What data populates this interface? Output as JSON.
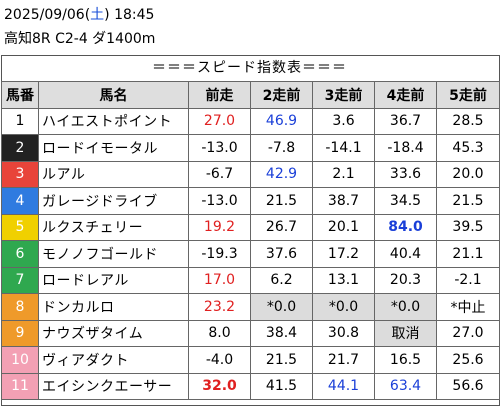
{
  "header": {
    "date": "2025/09/06",
    "dow_open": "(",
    "dow": "土",
    "dow_close": ")",
    "time": "18:45",
    "race": "高知8R C2-4 ダ1400m"
  },
  "table_title": "＝＝＝スピード指数表＝＝＝",
  "columns": [
    "馬番",
    "馬名",
    "前走",
    "2走前",
    "3走前",
    "4走前",
    "5走前"
  ],
  "frame_colors": {
    "1": {
      "bg": "#ffffff",
      "fg": "#000000"
    },
    "2": {
      "bg": "#222222",
      "fg": "#ffffff"
    },
    "3": {
      "bg": "#e8443a",
      "fg": "#ffffff"
    },
    "4": {
      "bg": "#2f7be0",
      "fg": "#ffffff"
    },
    "5": {
      "bg": "#f0d000",
      "fg": "#ffffff"
    },
    "6": {
      "bg": "#2fa84f",
      "fg": "#ffffff"
    },
    "7": {
      "bg": "#ef9a2a",
      "fg": "#ffffff"
    },
    "8": {
      "bg": "#f3a0b4",
      "fg": "#ffffff"
    }
  },
  "rows": [
    {
      "num": "1",
      "frame": "1",
      "name": "ハイエストポイント",
      "vals": [
        {
          "t": "27.0",
          "c": "red"
        },
        {
          "t": "46.9",
          "c": "blue"
        },
        {
          "t": "3.6"
        },
        {
          "t": "36.7"
        },
        {
          "t": "28.5"
        }
      ]
    },
    {
      "num": "2",
      "frame": "2",
      "name": "ロードイモータル",
      "vals": [
        {
          "t": "-13.0"
        },
        {
          "t": "-7.8"
        },
        {
          "t": "-14.1"
        },
        {
          "t": "-18.4"
        },
        {
          "t": "45.3"
        }
      ]
    },
    {
      "num": "3",
      "frame": "3",
      "name": "ルアル",
      "vals": [
        {
          "t": "-6.7"
        },
        {
          "t": "42.9",
          "c": "blue"
        },
        {
          "t": "2.1"
        },
        {
          "t": "33.6"
        },
        {
          "t": "20.0"
        }
      ]
    },
    {
      "num": "4",
      "frame": "4",
      "name": "ガレージドライブ",
      "vals": [
        {
          "t": "-13.0"
        },
        {
          "t": "21.5"
        },
        {
          "t": "38.7"
        },
        {
          "t": "34.5"
        },
        {
          "t": "21.5"
        }
      ]
    },
    {
      "num": "5",
      "frame": "5",
      "name": "ルクスチェリー",
      "vals": [
        {
          "t": "19.2",
          "c": "red"
        },
        {
          "t": "26.7"
        },
        {
          "t": "20.1"
        },
        {
          "t": "84.0",
          "c": "blue",
          "b": true
        },
        {
          "t": "39.5"
        }
      ]
    },
    {
      "num": "6",
      "frame": "6",
      "name": "モノノフゴールド",
      "vals": [
        {
          "t": "-19.3"
        },
        {
          "t": "37.6"
        },
        {
          "t": "17.2"
        },
        {
          "t": "40.4"
        },
        {
          "t": "21.1"
        }
      ]
    },
    {
      "num": "7",
      "frame": "6",
      "name": "ロードレアル",
      "vals": [
        {
          "t": "17.0",
          "c": "red"
        },
        {
          "t": "6.2"
        },
        {
          "t": "13.1"
        },
        {
          "t": "20.3"
        },
        {
          "t": "-2.1"
        }
      ]
    },
    {
      "num": "8",
      "frame": "7",
      "name": "ドンカルロ",
      "vals": [
        {
          "t": "23.2",
          "c": "red"
        },
        {
          "t": "*0.0",
          "g": true
        },
        {
          "t": "*0.0",
          "g": true
        },
        {
          "t": "*0.0",
          "g": true
        },
        {
          "t": "*中止"
        }
      ]
    },
    {
      "num": "9",
      "frame": "7",
      "name": "ナウズザタイム",
      "vals": [
        {
          "t": "8.0"
        },
        {
          "t": "38.4"
        },
        {
          "t": "30.8"
        },
        {
          "t": "取消",
          "g": true
        },
        {
          "t": "27.0"
        }
      ]
    },
    {
      "num": "10",
      "frame": "8",
      "name": "ヴィアダクト",
      "vals": [
        {
          "t": "-4.0"
        },
        {
          "t": "21.5"
        },
        {
          "t": "21.7"
        },
        {
          "t": "16.5"
        },
        {
          "t": "25.6"
        }
      ]
    },
    {
      "num": "11",
      "frame": "8",
      "name": "エイシンクエーサー",
      "vals": [
        {
          "t": "32.0",
          "c": "red",
          "b": true
        },
        {
          "t": "41.5"
        },
        {
          "t": "44.1",
          "c": "blue"
        },
        {
          "t": "63.4",
          "c": "blue"
        },
        {
          "t": "56.6"
        }
      ]
    }
  ]
}
